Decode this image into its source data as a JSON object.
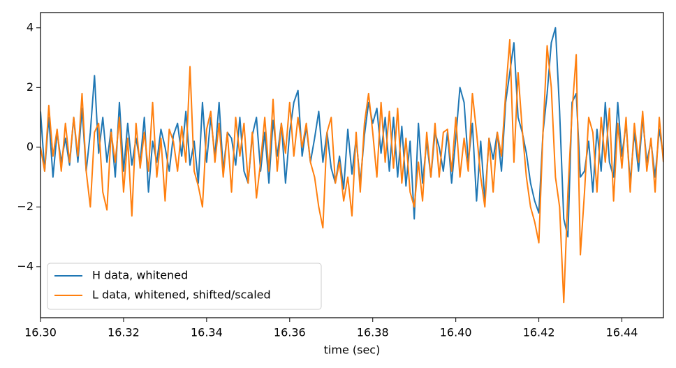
{
  "chart_data": {
    "type": "line",
    "xlabel": "time (sec)",
    "x": [
      16.3,
      16.301,
      16.302,
      16.303,
      16.304,
      16.305,
      16.306,
      16.307,
      16.308,
      16.309,
      16.31,
      16.311,
      16.312,
      16.313,
      16.314,
      16.315,
      16.316,
      16.317,
      16.318,
      16.319,
      16.32,
      16.321,
      16.322,
      16.323,
      16.324,
      16.325,
      16.326,
      16.327,
      16.328,
      16.329,
      16.33,
      16.331,
      16.332,
      16.333,
      16.334,
      16.335,
      16.336,
      16.337,
      16.338,
      16.339,
      16.34,
      16.341,
      16.342,
      16.343,
      16.344,
      16.345,
      16.346,
      16.347,
      16.348,
      16.349,
      16.35,
      16.351,
      16.352,
      16.353,
      16.354,
      16.355,
      16.356,
      16.357,
      16.358,
      16.359,
      16.36,
      16.361,
      16.362,
      16.363,
      16.364,
      16.365,
      16.366,
      16.367,
      16.368,
      16.369,
      16.37,
      16.371,
      16.372,
      16.373,
      16.374,
      16.375,
      16.376,
      16.377,
      16.378,
      16.379,
      16.38,
      16.381,
      16.382,
      16.383,
      16.384,
      16.385,
      16.386,
      16.387,
      16.388,
      16.389,
      16.39,
      16.391,
      16.392,
      16.393,
      16.394,
      16.395,
      16.396,
      16.397,
      16.398,
      16.399,
      16.4,
      16.401,
      16.402,
      16.403,
      16.404,
      16.405,
      16.406,
      16.407,
      16.408,
      16.409,
      16.41,
      16.411,
      16.412,
      16.413,
      16.414,
      16.415,
      16.416,
      16.417,
      16.418,
      16.419,
      16.42,
      16.421,
      16.422,
      16.423,
      16.424,
      16.425,
      16.426,
      16.427,
      16.428,
      16.429,
      16.43,
      16.431,
      16.432,
      16.433,
      16.434,
      16.435,
      16.436,
      16.437,
      16.438,
      16.439,
      16.44,
      16.441,
      16.442,
      16.443,
      16.444,
      16.445,
      16.446,
      16.447,
      16.448,
      16.449,
      16.45
    ],
    "series": [
      {
        "name": "H data, whitened",
        "color": "#1f77b4",
        "values": [
          1.2,
          -0.8,
          1.0,
          -1.0,
          0.5,
          -0.5,
          0.3,
          -0.6,
          1.0,
          -0.5,
          1.3,
          -0.8,
          0.5,
          2.4,
          -0.2,
          1.0,
          -0.5,
          0.6,
          -1.0,
          1.5,
          -0.8,
          0.8,
          -0.6,
          0.3,
          -0.5,
          1.0,
          -1.5,
          0.2,
          -0.5,
          0.6,
          0.0,
          -0.8,
          0.4,
          0.8,
          -0.3,
          1.2,
          -0.6,
          0.2,
          -1.2,
          1.5,
          -0.5,
          1.0,
          -0.3,
          1.5,
          -0.8,
          0.5,
          0.3,
          -0.6,
          1.0,
          -0.8,
          -1.2,
          0.4,
          1.0,
          -0.8,
          0.5,
          -1.2,
          0.9,
          -0.3,
          0.8,
          -1.2,
          0.5,
          1.5,
          1.9,
          -0.3,
          0.7,
          -0.5,
          0.3,
          1.2,
          -0.5,
          0.5,
          -0.7,
          -1.2,
          -0.3,
          -1.4,
          0.6,
          -0.9,
          0.3,
          -1.2,
          0.4,
          1.5,
          0.8,
          1.3,
          -0.2,
          1.0,
          -0.8,
          1.0,
          -1.0,
          0.7,
          -1.3,
          0.2,
          -2.4,
          0.8,
          -1.2,
          0.2,
          -1.0,
          0.5,
          0.0,
          -0.8,
          0.5,
          -1.2,
          0.3,
          2.0,
          1.5,
          -0.5,
          0.8,
          -1.8,
          0.2,
          -1.8,
          0.3,
          -0.4,
          0.5,
          -0.8,
          1.5,
          2.5,
          3.5,
          1.0,
          0.5,
          -0.2,
          -1.2,
          -1.8,
          -2.2,
          0.5,
          1.8,
          3.5,
          4.0,
          1.2,
          -2.4,
          -3.0,
          1.5,
          1.8,
          -1.0,
          -0.8,
          0.2,
          -1.5,
          0.6,
          -0.8,
          1.5,
          -0.5,
          -1.0,
          1.5,
          -0.3,
          0.8,
          -1.2,
          0.5,
          -0.8,
          1.0,
          -0.5,
          0.2,
          -1.0,
          0.6,
          -0.3
        ]
      },
      {
        "name": "L data, whitened, shifted/scaled",
        "color": "#ff7f0e",
        "values": [
          0.0,
          -0.8,
          1.4,
          -0.3,
          0.6,
          -0.8,
          0.8,
          -0.5,
          1.0,
          -0.3,
          1.8,
          -0.8,
          -2.0,
          0.5,
          0.8,
          -1.5,
          -2.1,
          0.5,
          -0.5,
          1.0,
          -1.5,
          0.3,
          -2.3,
          0.8,
          -0.7,
          0.5,
          -0.8,
          1.5,
          -1.0,
          0.3,
          -1.8,
          0.6,
          0.2,
          -0.8,
          0.7,
          -0.5,
          2.7,
          -0.8,
          -1.3,
          -2.0,
          0.6,
          1.2,
          -0.5,
          0.8,
          -1.0,
          0.5,
          -1.5,
          1.0,
          -0.3,
          0.8,
          -1.2,
          0.5,
          -1.7,
          -0.5,
          1.0,
          -0.8,
          1.6,
          -0.8,
          0.8,
          -0.2,
          1.5,
          -0.3,
          1.0,
          0.0,
          0.8,
          -0.5,
          -1.0,
          -2.0,
          -2.7,
          0.5,
          1.0,
          -1.2,
          -0.5,
          -1.8,
          -1.0,
          -2.3,
          0.5,
          -1.5,
          0.8,
          1.8,
          0.5,
          -1.0,
          1.5,
          -0.5,
          1.2,
          -0.7,
          1.3,
          -1.2,
          0.3,
          -1.5,
          -2.0,
          -0.5,
          -1.8,
          0.5,
          -1.0,
          0.8,
          -1.0,
          0.5,
          0.6,
          -0.8,
          1.0,
          -1.0,
          0.3,
          -0.8,
          1.8,
          0.5,
          -1.0,
          -2.0,
          0.3,
          -1.5,
          0.5,
          -0.3,
          1.8,
          3.6,
          -0.5,
          2.5,
          0.6,
          -1.0,
          -2.0,
          -2.5,
          -3.2,
          0.5,
          3.4,
          2.0,
          -1.0,
          -2.0,
          -5.2,
          -1.5,
          1.2,
          3.1,
          -3.6,
          -1.5,
          1.0,
          0.5,
          -1.5,
          1.0,
          -0.5,
          1.3,
          -1.8,
          0.8,
          -0.7,
          1.0,
          -1.5,
          0.8,
          -0.5,
          1.2,
          -0.8,
          0.3,
          -1.5,
          1.0,
          -0.5
        ]
      }
    ],
    "xlim": [
      16.3,
      16.45
    ],
    "xticks": [
      {
        "value": 16.3,
        "label": "16.30"
      },
      16.32,
      16.34,
      16.36,
      16.38,
      {
        "value": 16.4,
        "label": "16.40"
      },
      16.42,
      16.44
    ],
    "ylim": [
      -5.71,
      4.51
    ],
    "yticks": [
      {
        "value": -4,
        "label": "−4"
      },
      {
        "value": -2,
        "label": "−2"
      },
      0,
      2,
      4
    ],
    "legend": "lower left"
  }
}
